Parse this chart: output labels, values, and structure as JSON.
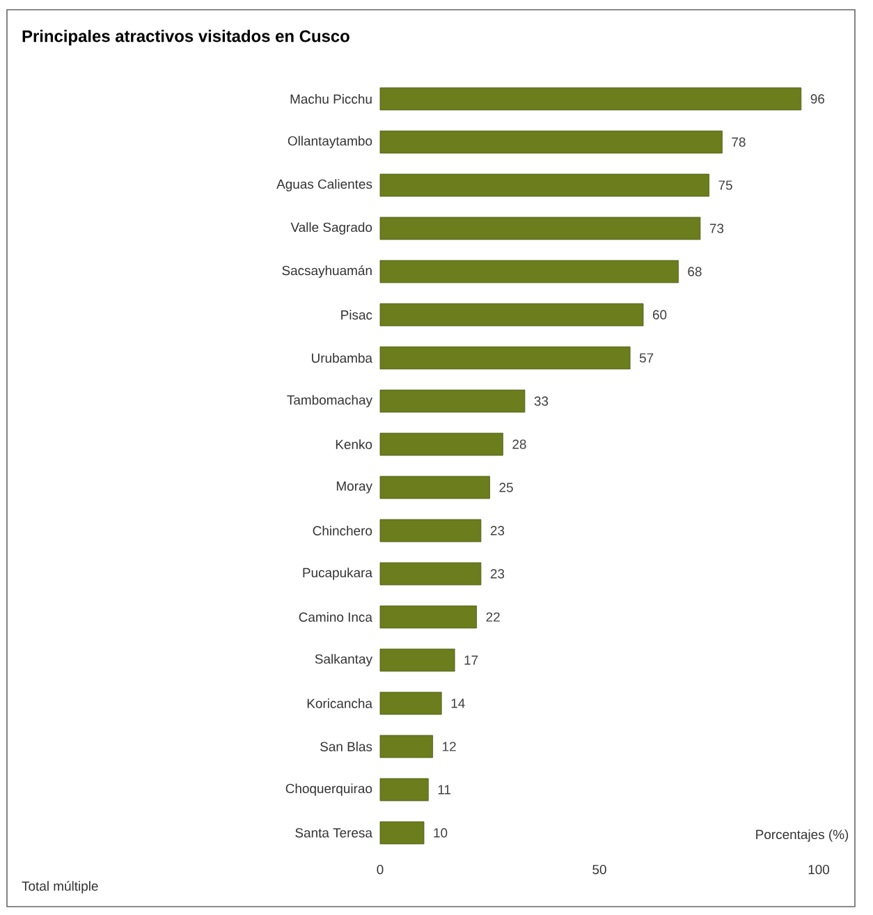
{
  "chart_data": {
    "type": "bar",
    "orientation": "horizontal",
    "title": "Principales atractivos visitados en Cusco",
    "categories": [
      "Machu Picchu",
      "Ollantaytambo",
      "Aguas Calientes",
      "Valle Sagrado",
      "Sacsayhuamán",
      "Pisac",
      "Urubamba",
      "Tambomachay",
      "Kenko",
      "Moray",
      "Chinchero",
      "Pucapukara",
      "Camino Inca",
      "Salkantay",
      "Koricancha",
      "San Blas",
      "Choquerquirao",
      "Santa Teresa"
    ],
    "values": [
      96,
      78,
      75,
      73,
      68,
      60,
      57,
      33,
      28,
      25,
      23,
      23,
      22,
      17,
      14,
      12,
      11,
      10
    ],
    "color": "#6b7d1c",
    "data_labels": true,
    "xlim": [
      0,
      100
    ],
    "xticks": [
      0,
      50,
      100
    ],
    "xlabel": "Porcentajes (%)",
    "annotations": [
      "Total múltiple"
    ]
  }
}
